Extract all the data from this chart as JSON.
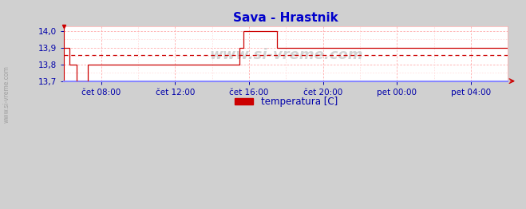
{
  "title": "Sava - Hrastnik",
  "title_color": "#0000cc",
  "title_fontsize": 11,
  "bg_color": "#d0d0d0",
  "plot_bg_color": "#ffffff",
  "grid_color": "#ffaaaa",
  "grid_color2": "#ffcccc",
  "axis_bottom_color": "#8888ff",
  "axis_other_color": "#cc0000",
  "line_color": "#cc0000",
  "avg_line_color": "#cc0000",
  "ylabel_color": "#0000aa",
  "xlabel_color": "#0000aa",
  "ylim": [
    13.7,
    14.03
  ],
  "xlim": [
    0,
    24
  ],
  "yticks": [
    13.7,
    13.8,
    13.9,
    14.0
  ],
  "ytick_labels": [
    "13,7",
    "13,8",
    "13,9",
    "14,0"
  ],
  "xtick_positions": [
    2,
    6,
    10,
    14,
    18,
    22
  ],
  "xtick_labels": [
    "čet 08:00",
    "čet 12:00",
    "čet 16:00",
    "čet 20:00",
    "pet 00:00",
    "pet 04:00"
  ],
  "legend_label": "temperatura [C]",
  "legend_color": "#cc0000",
  "avg_value": 13.857,
  "watermark": "www.si-vreme.com",
  "left_label": "www.si-vreme.com",
  "segs_x": [
    0,
    0.3,
    0.3,
    0.7,
    0.7,
    1.3,
    1.3,
    9.5,
    9.5,
    9.7,
    9.7,
    11.5,
    11.5,
    18.5,
    18.5,
    24
  ],
  "segs_y": [
    13.9,
    13.9,
    13.8,
    13.8,
    13.7,
    13.7,
    13.8,
    13.8,
    13.9,
    13.9,
    14.0,
    14.0,
    13.9,
    13.9,
    13.9,
    13.9
  ],
  "marker_x": 0,
  "marker_y": 14.0
}
